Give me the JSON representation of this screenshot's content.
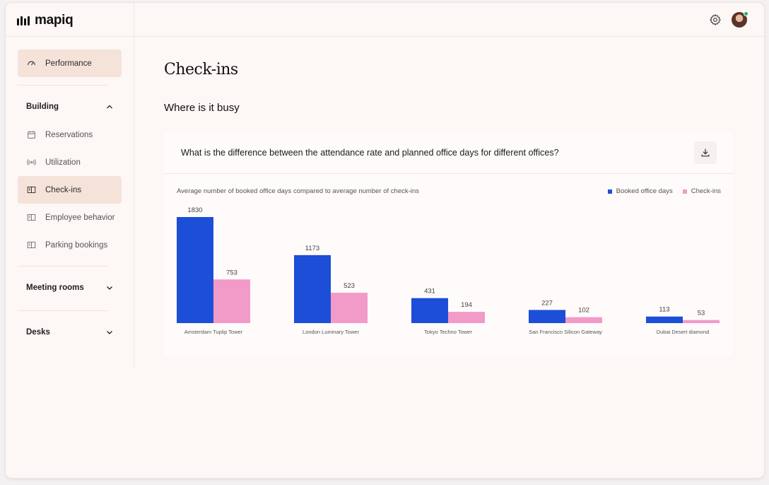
{
  "app": {
    "brand": "mapiq"
  },
  "header": {
    "settings_icon": "gear-icon",
    "avatar_icon": "user-avatar"
  },
  "sidebar": {
    "performance": {
      "label": "Performance",
      "icon": "gauge-icon",
      "active": true
    },
    "building": {
      "label": "Building",
      "expanded": true,
      "items": [
        {
          "label": "Reservations",
          "icon": "calendar-icon"
        },
        {
          "label": "Utilization",
          "icon": "broadcast-icon"
        },
        {
          "label": "Check-ins",
          "icon": "book-icon",
          "active": true
        },
        {
          "label": "Employee behavior",
          "icon": "book-icon"
        },
        {
          "label": "Parking bookings",
          "icon": "book-icon"
        }
      ]
    },
    "meeting_rooms": {
      "label": "Meeting rooms",
      "expanded": false
    },
    "desks": {
      "label": "Desks",
      "expanded": false
    }
  },
  "main": {
    "title": "Check-ins",
    "section_title": "Where is it busy",
    "card": {
      "question": "What is the difference between the attendance rate and planned office days for different offices?",
      "download_icon": "download-icon"
    }
  },
  "colors": {
    "booked": "#1d4ed8",
    "checkins": "#f29ac8",
    "accent_bg": "#f5e3d9"
  },
  "chart_data": {
    "type": "bar",
    "title": "Average number of booked office days compared to average number of check-ins",
    "categories": [
      "Amsterdam Tuplip Tower",
      "London Luminary Tower",
      "Tokyo Techno Tower",
      "San Francisco Silicon Gateway",
      "Dubai Desert diamond"
    ],
    "series": [
      {
        "name": "Booked office days",
        "values": [
          1830,
          1173,
          431,
          227,
          113
        ]
      },
      {
        "name": "Check-ins",
        "values": [
          753,
          523,
          194,
          102,
          53
        ]
      }
    ],
    "ylim": [
      0,
      1830
    ],
    "legend": "top-right",
    "grid": false
  }
}
